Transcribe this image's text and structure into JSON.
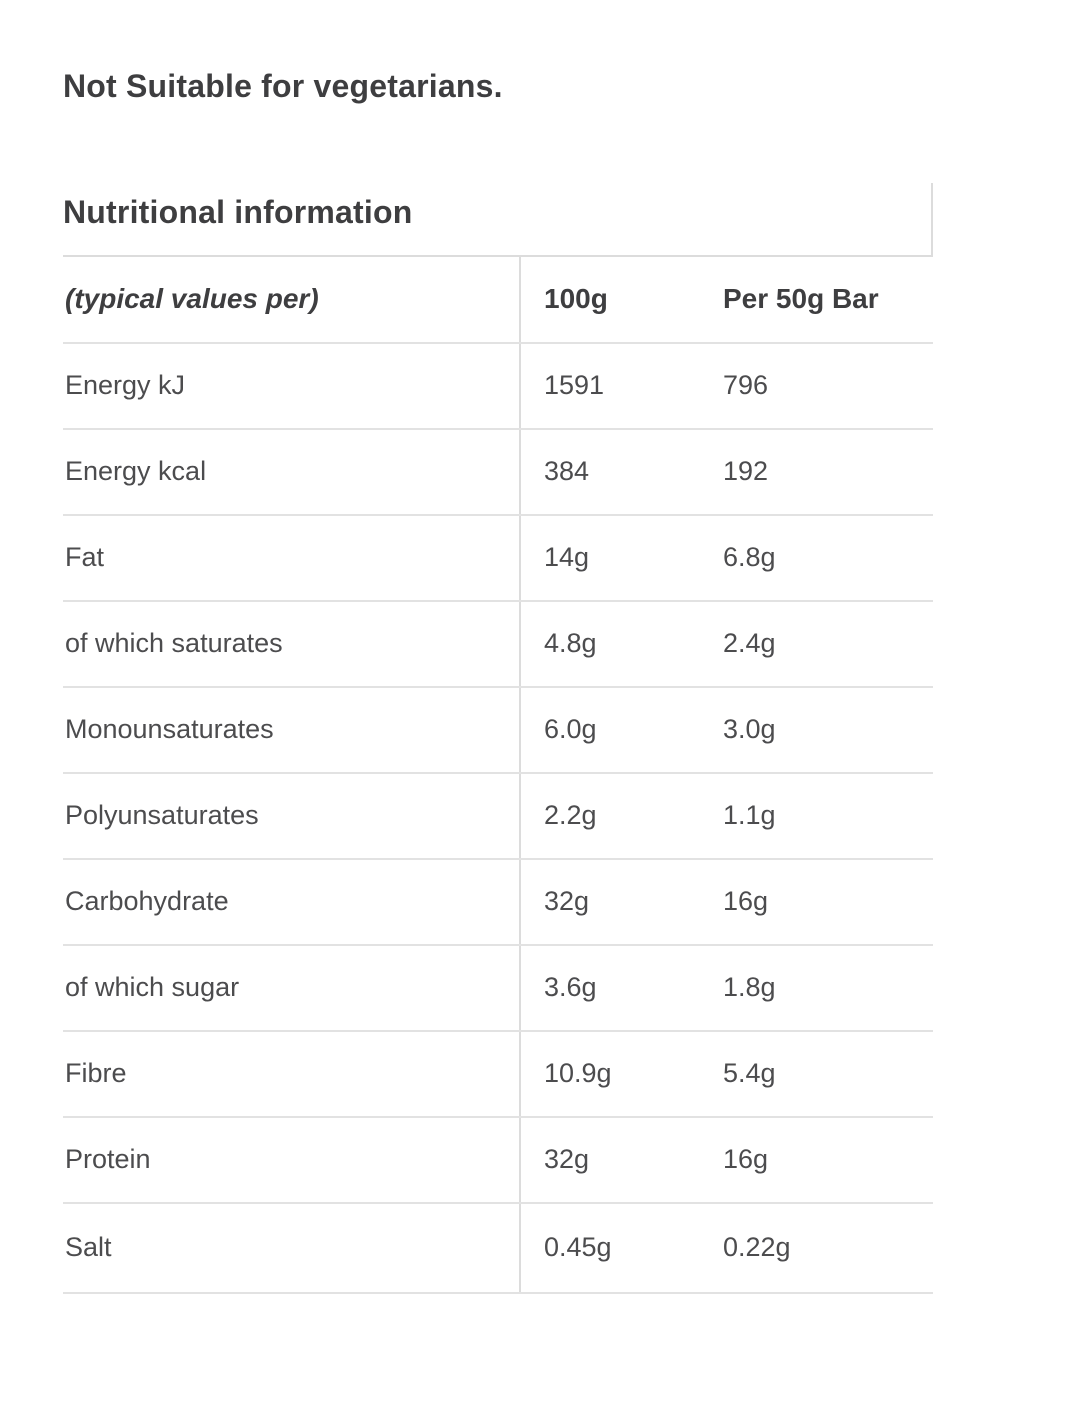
{
  "page": {
    "suitability_notice": "Not Suitable for vegetarians.",
    "section_title": "Nutritional information"
  },
  "table": {
    "columns": [
      "(typical values per)",
      "100g",
      "Per 50g Bar"
    ],
    "rows": [
      {
        "label": "Energy kJ",
        "per_100g": "1591",
        "per_50g_bar": "796"
      },
      {
        "label": "Energy kcal",
        "per_100g": "384",
        "per_50g_bar": "192"
      },
      {
        "label": "Fat",
        "per_100g": "14g",
        "per_50g_bar": "6.8g"
      },
      {
        "label": "of which saturates",
        "per_100g": "4.8g",
        "per_50g_bar": "2.4g"
      },
      {
        "label": "Monounsaturates",
        "per_100g": "6.0g",
        "per_50g_bar": "3.0g"
      },
      {
        "label": "Polyunsaturates",
        "per_100g": "2.2g",
        "per_50g_bar": "1.1g"
      },
      {
        "label": "Carbohydrate",
        "per_100g": "32g",
        "per_50g_bar": "16g"
      },
      {
        "label": "of which sugar",
        "per_100g": "3.6g",
        "per_50g_bar": "1.8g"
      },
      {
        "label": "Fibre",
        "per_100g": "10.9g",
        "per_50g_bar": "5.4g"
      },
      {
        "label": "Protein",
        "per_100g": "32g",
        "per_50g_bar": "16g"
      },
      {
        "label": "Salt",
        "per_100g": "0.45g",
        "per_50g_bar": "0.22g"
      }
    ]
  },
  "colors": {
    "background": "#ffffff",
    "heading_text": "#3e3e40",
    "body_text": "#4c4c4e",
    "divider_line": "#dcdcdc",
    "row_line": "#e2e2e2"
  }
}
